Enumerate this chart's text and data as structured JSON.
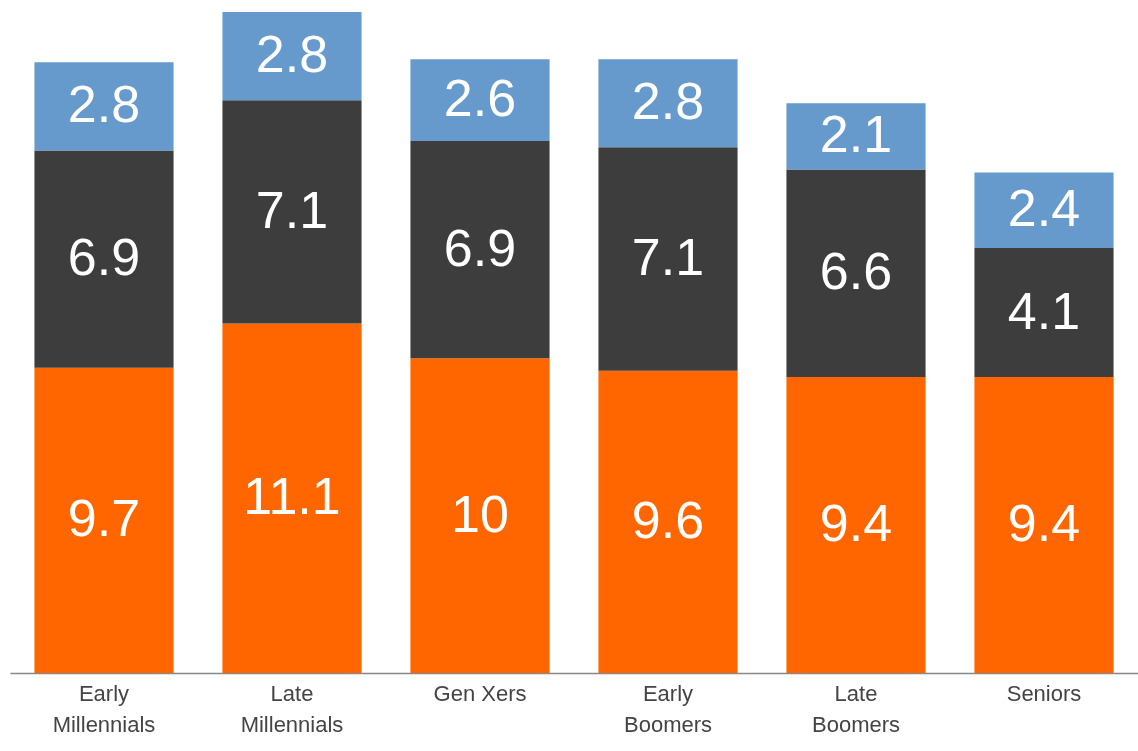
{
  "chart_data": {
    "type": "bar",
    "stacked": true,
    "data_labels": true,
    "grid": false,
    "categories": [
      "Early Millennials",
      "Late Millennials",
      "Gen Xers",
      "Early Boomers",
      "Late Boomers",
      "Seniors"
    ],
    "series": [
      {
        "color": "#ff6600",
        "values": [
          9.7,
          11.1,
          10,
          9.6,
          9.4,
          9.4
        ]
      },
      {
        "color": "#3d3d3d",
        "values": [
          6.9,
          7.1,
          6.9,
          7.1,
          6.6,
          4.1
        ]
      },
      {
        "color": "#6699cc",
        "values": [
          2.8,
          2.8,
          2.6,
          2.8,
          2.1,
          2.4
        ]
      }
    ]
  }
}
